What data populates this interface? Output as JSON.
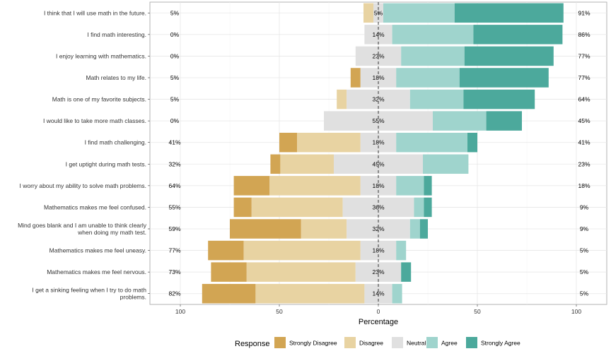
{
  "chart_data": {
    "type": "bar",
    "orientation": "horizontal",
    "stacked": "diverging",
    "title": "",
    "xlabel": "Percentage",
    "ylabel": "",
    "xlim": [
      -100,
      100
    ],
    "x_ticks": [
      -100,
      -50,
      0,
      50,
      100
    ],
    "x_tick_labels": [
      "100",
      "50",
      "0",
      "50",
      "100"
    ],
    "grid": true,
    "legend": {
      "title": "Response",
      "position": "bottom",
      "entries": [
        "Strongly Disagree",
        "Disagree",
        "Neutral",
        "Agree",
        "Strongly Agree"
      ]
    },
    "colors": {
      "Strongly Disagree": "#d2a553",
      "Disagree": "#e8d3a2",
      "Neutral": "#e0e0e0",
      "Agree": "#9fd4cd",
      "Strongly Agree": "#4ca99c"
    },
    "items": [
      {
        "label": "I think that I will use math in the future.",
        "values": [
          0,
          5,
          5,
          36,
          55
        ],
        "low_label": "5%",
        "neutral_label": "5%",
        "high_label": "91%"
      },
      {
        "label": "I find math interesting.",
        "values": [
          0,
          0,
          14,
          41,
          45
        ],
        "low_label": "0%",
        "neutral_label": "14%",
        "high_label": "86%"
      },
      {
        "label": "I enjoy learning with mathematics.",
        "values": [
          0,
          0,
          23,
          32,
          45
        ],
        "low_label": "0%",
        "neutral_label": "23%",
        "high_label": "77%"
      },
      {
        "label": "Math relates to my life.",
        "values": [
          5,
          0,
          18,
          32,
          45
        ],
        "low_label": "5%",
        "neutral_label": "18%",
        "high_label": "77%"
      },
      {
        "label": "Math is one of my favorite subjects.",
        "values": [
          0,
          5,
          32,
          27,
          36
        ],
        "low_label": "5%",
        "neutral_label": "32%",
        "high_label": "64%"
      },
      {
        "label": "I would like to take more math classes.",
        "values": [
          0,
          0,
          55,
          27,
          18
        ],
        "low_label": "0%",
        "neutral_label": "55%",
        "high_label": "45%"
      },
      {
        "label": "I find math challenging.",
        "values": [
          9,
          32,
          18,
          36,
          5
        ],
        "low_label": "41%",
        "neutral_label": "18%",
        "high_label": "41%"
      },
      {
        "label": "I get uptight during math tests.",
        "values": [
          5,
          27,
          45,
          23,
          0
        ],
        "low_label": "32%",
        "neutral_label": "45%",
        "high_label": "23%"
      },
      {
        "label": "I worry about my ability to solve math problems.",
        "values": [
          18,
          46,
          18,
          14,
          4
        ],
        "low_label": "64%",
        "neutral_label": "18%",
        "high_label": "18%"
      },
      {
        "label": "Mathematics makes me feel confused.",
        "values": [
          9,
          46,
          36,
          5,
          4
        ],
        "low_label": "55%",
        "neutral_label": "36%",
        "high_label": "9%"
      },
      {
        "label": "Mind goes blank and I am unable to think clearly when doing my math test.",
        "lines": [
          "Mind goes blank and I am unable to think clearly",
          "when doing my math test."
        ],
        "values": [
          36,
          23,
          32,
          5,
          4
        ],
        "low_label": "59%",
        "neutral_label": "32%",
        "high_label": "9%"
      },
      {
        "label": "Mathematics makes me feel uneasy.",
        "values": [
          18,
          59,
          18,
          5,
          0
        ],
        "low_label": "77%",
        "neutral_label": "18%",
        "high_label": "5%"
      },
      {
        "label": "Mathematics makes me feel nervous.",
        "values": [
          18,
          55,
          23,
          0,
          5
        ],
        "low_label": "73%",
        "neutral_label": "23%",
        "high_label": "5%"
      },
      {
        "label": "I get a sinking feeling when I try to do math problems.",
        "lines": [
          "I get a sinking feeling when I try to do math",
          "problems."
        ],
        "values": [
          27,
          55,
          14,
          5,
          0
        ],
        "low_label": "82%",
        "neutral_label": "14%",
        "high_label": "5%"
      }
    ]
  }
}
